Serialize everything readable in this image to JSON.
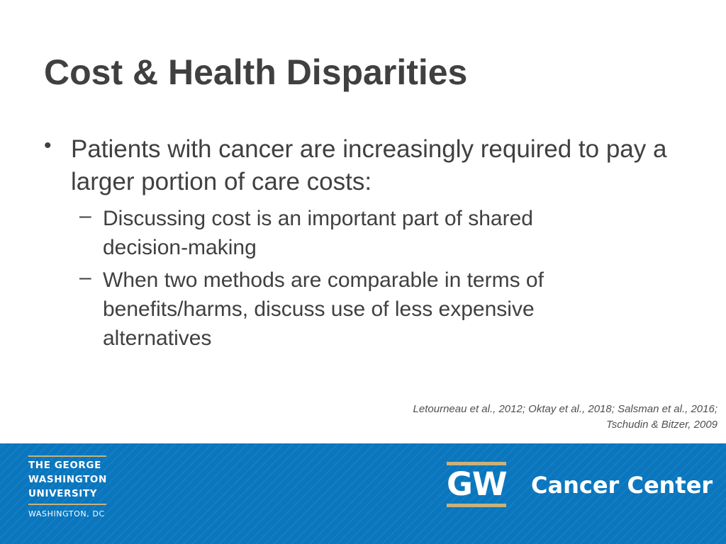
{
  "slide": {
    "title": "Cost & Health Disparities",
    "bullets": [
      {
        "marker": "•",
        "text": "Patients with cancer are increasingly required to pay a larger portion of care costs:",
        "sub_bullets": [
          {
            "marker": "–",
            "text": "Discussing cost is an important part of shared decision-making"
          },
          {
            "marker": "–",
            "text": "When two methods are comparable in terms of benefits/harms, discuss use of less expensive alternatives"
          }
        ]
      }
    ],
    "citation": "Letourneau et al., 2012; Oktay et al., 2018; Salsman et al., 2016; Tschudin & Bitzer, 2009"
  },
  "footer": {
    "background_color": "#0a76be",
    "accent_color": "#c8b27a",
    "university_logo": {
      "lines": [
        "THE GEORGE",
        "WASHINGTON",
        "UNIVERSITY"
      ],
      "location": "WASHINGTON, DC"
    },
    "gw_monogram": "GW",
    "center_name": "Cancer Center"
  }
}
